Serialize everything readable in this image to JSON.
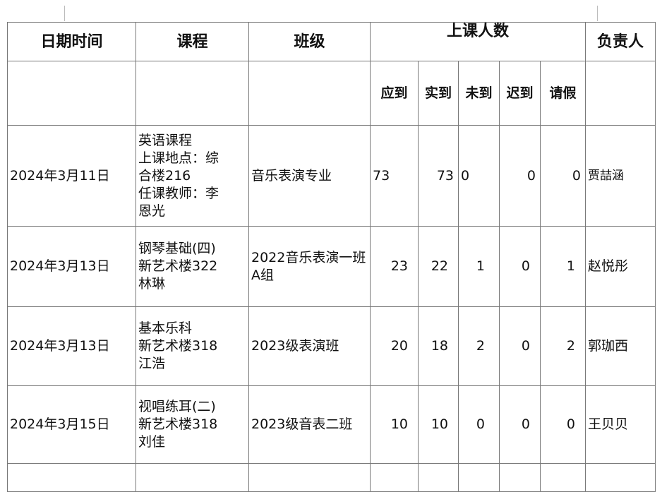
{
  "headers": {
    "date": "日期时间",
    "course": "课程",
    "class": "班级",
    "attendance": "上课人数",
    "owner": "负责人"
  },
  "subheaders": [
    "应到",
    "实到",
    "未到",
    "迟到",
    "请假"
  ],
  "rows": [
    {
      "date": "2024年3月11日",
      "course": [
        "英语课程",
        "上课地点：综",
        "合楼216",
        "任课教师：李",
        "恩光"
      ],
      "class": "音乐表演专业",
      "expected": "73",
      "present": "73",
      "absent": "0",
      "late": "0",
      "leave": "0",
      "owner": "贾喆涵"
    },
    {
      "date": "2024年3月13日",
      "course": [
        "钢琴基础(四)",
        "新艺术楼322",
        "林琳"
      ],
      "class": "2022音乐表演一班A组",
      "expected": "23",
      "present": "22",
      "absent": "1",
      "late": "0",
      "leave": "1",
      "owner": "赵悦彤"
    },
    {
      "date": "2024年3月13日",
      "course": [
        "基本乐科",
        "新艺术楼318",
        "江浩"
      ],
      "class": "2023级表演班",
      "expected": "20",
      "present": "18",
      "absent": "2",
      "late": "0",
      "leave": "2",
      "owner": "郭珈西"
    },
    {
      "date": "2024年3月15日",
      "course": [
        "视唱练耳(二)",
        "新艺术楼318",
        "刘佳"
      ],
      "class": "2023级音表二班",
      "expected": "10",
      "present": "10",
      "absent": "0",
      "late": "0",
      "leave": "0",
      "owner": "王贝贝"
    }
  ]
}
